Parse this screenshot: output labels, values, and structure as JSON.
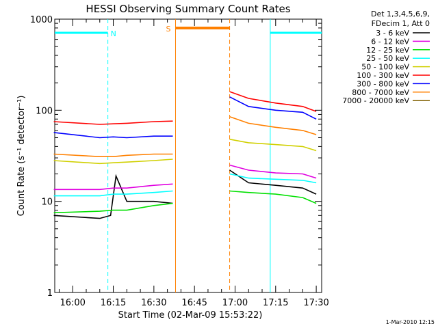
{
  "chart_data": {
    "type": "line",
    "title": "HESSI Observing Summary Count Rates",
    "xlabel": "Start Time (02-Mar-09 15:53:22)",
    "ylabel": "Count Rate (s⁻¹ detector⁻¹)",
    "xlim": [
      "15:53:22",
      "17:32:00"
    ],
    "ylim": [
      1,
      1000
    ],
    "yscale": "log",
    "x_ticks": [
      "16:00",
      "16:15",
      "16:30",
      "16:45",
      "17:00",
      "17:15",
      "17:30"
    ],
    "y_ticks": [
      "1",
      "10",
      "100",
      "1000"
    ],
    "timestamp": "1-Mar-2010 12:15",
    "legend": {
      "placement": "right",
      "header": [
        "Det 1,3,4,5,6,9,",
        "FDecim 1, Att 0"
      ]
    },
    "series": [
      {
        "name": "3 - 6 keV",
        "color": "#000000",
        "x": [
          "15:53",
          "16:10",
          "16:14",
          "16:16",
          "16:20",
          "16:30",
          "16:37",
          "16:58",
          "17:05",
          "17:15",
          "17:25",
          "17:30"
        ],
        "y": [
          7,
          6.5,
          7,
          19,
          10,
          10,
          9.5,
          22,
          16,
          15,
          14,
          12
        ]
      },
      {
        "name": "6 - 12 keV",
        "color": "#e000e0",
        "x": [
          "15:53",
          "16:10",
          "16:15",
          "16:20",
          "16:30",
          "16:37",
          "16:58",
          "17:05",
          "17:15",
          "17:25",
          "17:30"
        ],
        "y": [
          13.5,
          13.5,
          14,
          14,
          15,
          15.5,
          25,
          22,
          20.5,
          20,
          18
        ]
      },
      {
        "name": "12 - 25 keV",
        "color": "#00e000",
        "x": [
          "15:53",
          "16:10",
          "16:15",
          "16:20",
          "16:30",
          "16:37",
          "16:58",
          "17:05",
          "17:15",
          "17:25",
          "17:30"
        ],
        "y": [
          7.5,
          7.8,
          8,
          8,
          9,
          9.5,
          13,
          12.5,
          12,
          11,
          9.5
        ]
      },
      {
        "name": "25 - 50 keV",
        "color": "#00ffff",
        "x": [
          "15:53",
          "16:10",
          "16:15",
          "16:20",
          "16:30",
          "16:37",
          "16:58",
          "17:05",
          "17:15",
          "17:25",
          "17:30"
        ],
        "y": [
          11.5,
          11.5,
          12,
          12,
          12.5,
          13,
          20,
          18,
          17.5,
          17,
          16
        ]
      },
      {
        "name": "50 - 100 keV",
        "color": "#d0d000",
        "x": [
          "15:53",
          "16:10",
          "16:15",
          "16:20",
          "16:30",
          "16:37",
          "16:58",
          "17:05",
          "17:15",
          "17:25",
          "17:30"
        ],
        "y": [
          28,
          26,
          26.5,
          27,
          28,
          29,
          48,
          44,
          42,
          40,
          36
        ]
      },
      {
        "name": "100 - 300 keV",
        "color": "#ff0000",
        "x": [
          "15:53",
          "16:10",
          "16:15",
          "16:20",
          "16:30",
          "16:37",
          "16:58",
          "17:05",
          "17:15",
          "17:25",
          "17:30"
        ],
        "y": [
          75,
          70,
          71,
          72,
          75,
          76,
          160,
          135,
          120,
          110,
          97
        ]
      },
      {
        "name": "300 - 800 keV",
        "color": "#0000ff",
        "x": [
          "15:53",
          "16:10",
          "16:15",
          "16:20",
          "16:30",
          "16:37",
          "16:58",
          "17:05",
          "17:15",
          "17:25",
          "17:30"
        ],
        "y": [
          57,
          50,
          51,
          50,
          52,
          52,
          140,
          110,
          100,
          95,
          80
        ]
      },
      {
        "name": "800 - 7000 keV",
        "color": "#ff8000",
        "x": [
          "15:53",
          "16:10",
          "16:15",
          "16:20",
          "16:30",
          "16:37",
          "16:58",
          "17:05",
          "17:15",
          "17:25",
          "17:30"
        ],
        "y": [
          33,
          31,
          31,
          32,
          33,
          33,
          85,
          72,
          65,
          60,
          54
        ]
      },
      {
        "name": "7000 - 20000 keV",
        "color": "#806000",
        "x": [],
        "y": []
      }
    ],
    "annotations": [
      {
        "label": "N",
        "color": "#00ffff",
        "kind": "night",
        "start": "15:53",
        "end": "16:13"
      },
      {
        "label": "",
        "color": "#00ffff",
        "kind": "night",
        "start": "17:13",
        "end": "17:32"
      },
      {
        "label": "S",
        "color": "#ff8000",
        "kind": "saa",
        "start": "16:38",
        "end": "16:58"
      }
    ]
  }
}
